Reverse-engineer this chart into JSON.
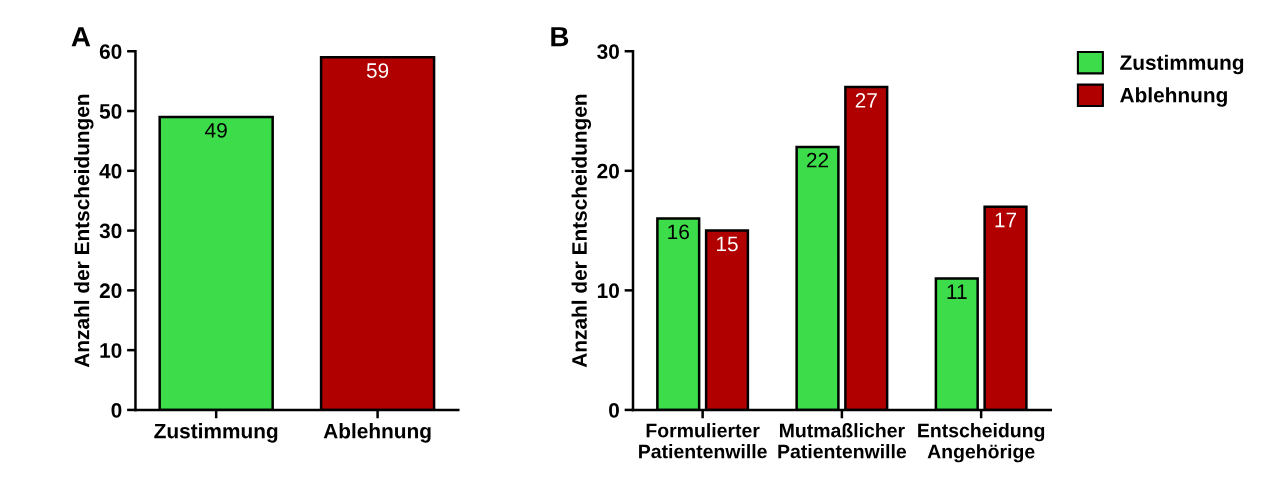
{
  "chart_data": [
    {
      "type": "bar",
      "annotations": [
        "A"
      ],
      "ylabel": "Anzahl der Entscheidungen",
      "categories": [
        "Zustimmung",
        "Ablehnung"
      ],
      "values": [
        49,
        59
      ],
      "colors": [
        "#3ddc4a",
        "#b00000"
      ],
      "ylim": [
        0,
        60
      ],
      "yticks": [
        0,
        10,
        20,
        30,
        40,
        50,
        60
      ],
      "data_labels": true,
      "grid": false,
      "legend": false
    },
    {
      "type": "bar",
      "annotations": [
        "B"
      ],
      "ylabel": "Anzahl der Entscheidungen",
      "categories": [
        "Formulierter\nPatientenwille",
        "Mutmaßlicher\nPatientenwille",
        "Entscheidung\nAngehörige"
      ],
      "series": [
        {
          "name": "Zustimmung",
          "color": "#3ddc4a",
          "values": [
            16,
            22,
            11
          ]
        },
        {
          "name": "Ablehnung",
          "color": "#b00000",
          "values": [
            15,
            27,
            17
          ]
        }
      ],
      "ylim": [
        0,
        30
      ],
      "yticks": [
        0,
        10,
        20,
        30
      ],
      "data_labels": true,
      "grid": false,
      "legend": "top right"
    }
  ]
}
